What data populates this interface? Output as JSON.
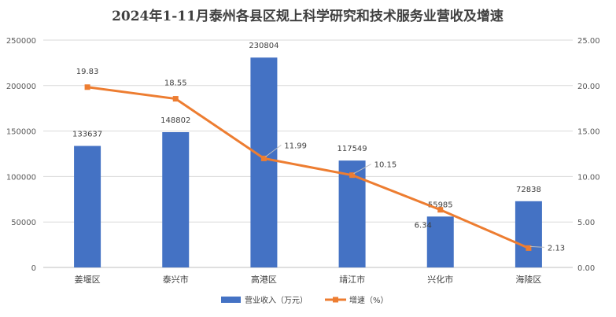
{
  "chart_data": {
    "type": "bar",
    "title": "2024年1-11月泰州各县区规上科学研究和技术服务业营收及增速",
    "categories": [
      "姜堰区",
      "泰兴市",
      "高港区",
      "靖江市",
      "兴化市",
      "海陵区"
    ],
    "series": [
      {
        "name": "营业收入（万元）",
        "type": "bar",
        "axis": "left",
        "values": [
          133637,
          148802,
          230804,
          117549,
          55985,
          72838
        ],
        "labels": [
          "133637",
          "148802",
          "230804",
          "117549",
          "55985",
          "72838"
        ],
        "color": "#4472C4"
      },
      {
        "name": "增速（%）",
        "type": "line",
        "axis": "right",
        "values": [
          19.83,
          18.55,
          11.99,
          10.15,
          6.34,
          2.13
        ],
        "labels": [
          "19.83",
          "18.55",
          "11.99",
          "10.15",
          "6.34",
          "2.13"
        ],
        "color": "#ED7D31"
      }
    ],
    "y_left": {
      "min": 0,
      "max": 250000,
      "ticks": [
        "0",
        "50000",
        "100000",
        "150000",
        "200000",
        "250000"
      ]
    },
    "y_right": {
      "min": 0,
      "max": 25,
      "ticks": [
        "0.00",
        "5.00",
        "10.00",
        "15.00",
        "20.00",
        "25.00"
      ]
    },
    "grid": true,
    "legend_position": "bottom"
  }
}
